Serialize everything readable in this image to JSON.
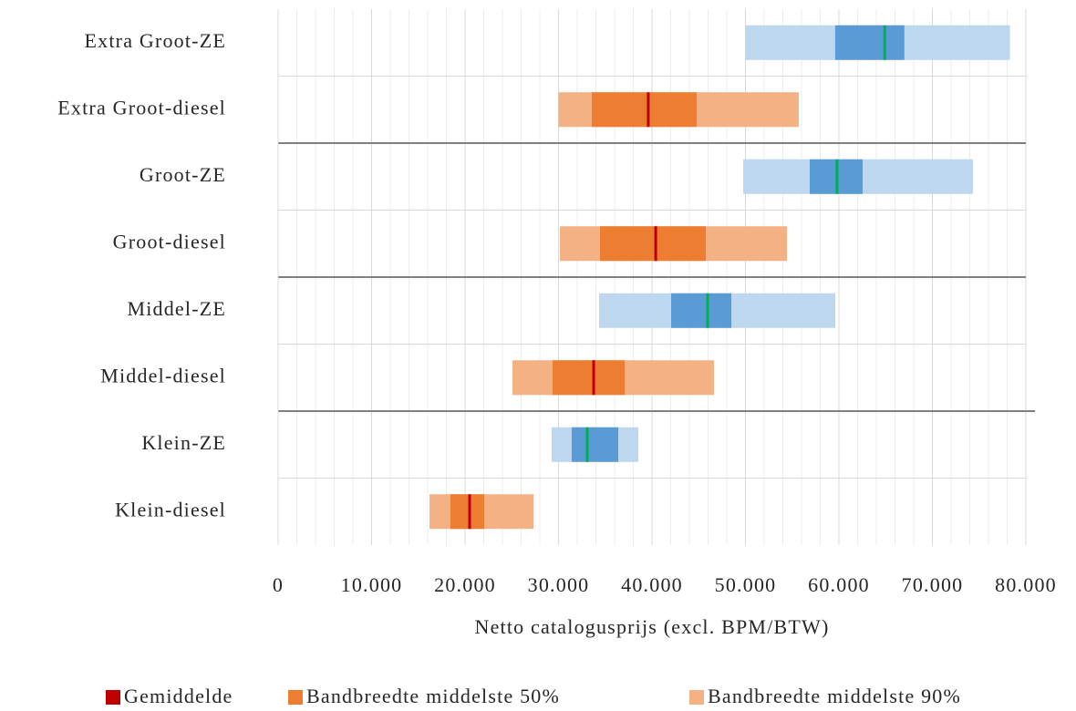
{
  "chart_data": {
    "type": "range-bar",
    "categories": [
      "Extra Groot-ZE",
      "Extra Groot-diesel",
      "Groot-ZE",
      "Groot-diesel",
      "Middel-ZE",
      "Middel-diesel",
      "Klein-ZE",
      "Klein-diesel"
    ],
    "series": [
      {
        "name": "Gemiddelde",
        "color": "#c00000",
        "colors": [
          "#00b050",
          "#c00000",
          "#00b050",
          "#c00000",
          "#00b050",
          "#c00000",
          "#00b050",
          "#c00000"
        ],
        "values": [
          64900,
          39600,
          59800,
          40400,
          45950,
          33760,
          33070,
          20490
        ]
      },
      {
        "name": "Bandbreedte middelste 50%",
        "color": "#ed7d31",
        "colors": [
          "#5b9bd5",
          "#ed7d31",
          "#5b9bd5",
          "#ed7d31",
          "#5b9bd5",
          "#ed7d31",
          "#5b9bd5",
          "#ed7d31"
        ],
        "low": [
          59600,
          33560,
          56880,
          34440,
          42050,
          29370,
          31410,
          18440
        ],
        "high": [
          67000,
          44780,
          62540,
          45760,
          48490,
          37070,
          36390,
          22050
        ]
      },
      {
        "name": "Bandbreedte middelste 90%",
        "color": "#f4b183",
        "colors": [
          "#bdd7ee",
          "#f4b183",
          "#bdd7ee",
          "#f4b183",
          "#bdd7ee",
          "#f4b183",
          "#bdd7ee",
          "#f4b183"
        ],
        "low": [
          50000,
          30000,
          49760,
          30150,
          34340,
          25070,
          29270,
          16200
        ],
        "high": [
          78300,
          55700,
          74340,
          54440,
          59610,
          46630,
          38540,
          27320
        ]
      }
    ],
    "xlabel": "Netto catalogusprijs (excl. BPM/BTW)",
    "xlim": [
      0,
      80000
    ],
    "xticks": [
      0,
      {
        "value": 10000,
        "label": "10.000"
      },
      {
        "value": 20000,
        "label": "20.000"
      },
      {
        "value": 30000,
        "label": "30.000"
      },
      {
        "value": 40000,
        "label": "40.000"
      },
      {
        "value": 50000,
        "label": "50.000"
      },
      {
        "value": 60000,
        "label": "60.000"
      },
      {
        "value": 70000,
        "label": "70.000"
      },
      {
        "value": 80000,
        "label": "80.000"
      }
    ],
    "grid": true,
    "legend": "bottom"
  }
}
